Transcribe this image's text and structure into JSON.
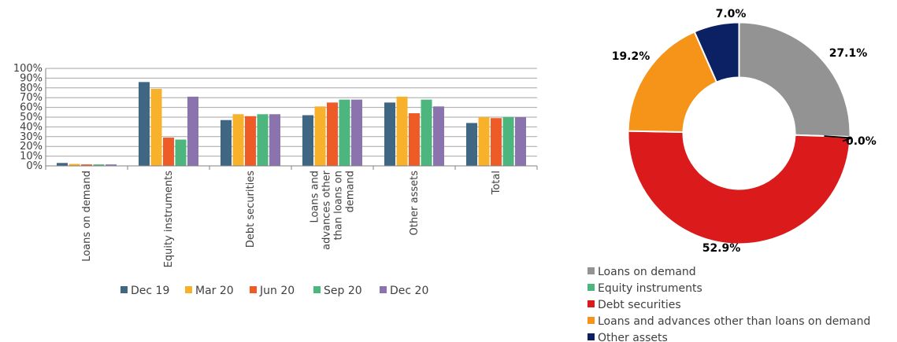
{
  "chart_data": [
    {
      "type": "bar",
      "categories": [
        "Loans on demand",
        "Equity instruments",
        "Debt securities",
        "Loans and advances other than loans on demand",
        "Other assets",
        "Total"
      ],
      "category_lines": [
        [
          "Loans on demand"
        ],
        [
          "Equity instruments"
        ],
        [
          "Debt securities"
        ],
        [
          "Loans and",
          "advances other",
          "than loans on",
          "demand"
        ],
        [
          "Other assets"
        ],
        [
          "Total"
        ]
      ],
      "series": [
        {
          "name": "Dec 19",
          "color": "#3F6783",
          "values": [
            3,
            86,
            47,
            52,
            65,
            44
          ]
        },
        {
          "name": "Mar 20",
          "color": "#F7B12B",
          "values": [
            2,
            79,
            53,
            61,
            71,
            50
          ]
        },
        {
          "name": "Jun 20",
          "color": "#EE5B26",
          "values": [
            1.5,
            29,
            51,
            65,
            54,
            49
          ]
        },
        {
          "name": "Sep 20",
          "color": "#4DB67E",
          "values": [
            1.5,
            27,
            53,
            68,
            68,
            50
          ]
        },
        {
          "name": "Dec 20",
          "color": "#8B74AE",
          "values": [
            1.5,
            71,
            53,
            68,
            61,
            50
          ]
        }
      ],
      "yticks": [
        "0%",
        "10%",
        "20%",
        "30%",
        "40%",
        "50%",
        "60%",
        "70%",
        "80%",
        "90%",
        "100%"
      ],
      "ylim": [
        0,
        100
      ],
      "grid": true,
      "legend_position": "bottom"
    },
    {
      "type": "pie",
      "donut": true,
      "slices": [
        {
          "name": "Loans on demand",
          "value": 27.1,
          "label": "27.1%",
          "color": "#939393"
        },
        {
          "name": "Equity instruments",
          "value": 0.0,
          "label": "0.0%",
          "color": "#4DB67E"
        },
        {
          "name": "Debt securities",
          "value": 52.9,
          "label": "52.9%",
          "color": "#DB1A1B"
        },
        {
          "name": "Loans and advances other than loans on demand",
          "value": 19.2,
          "label": "19.2%",
          "color": "#F59418"
        },
        {
          "name": "Other assets",
          "value": 7.0,
          "label": "7.0%",
          "color": "#0C2163"
        }
      ],
      "legend_position": "bottom-left"
    }
  ]
}
